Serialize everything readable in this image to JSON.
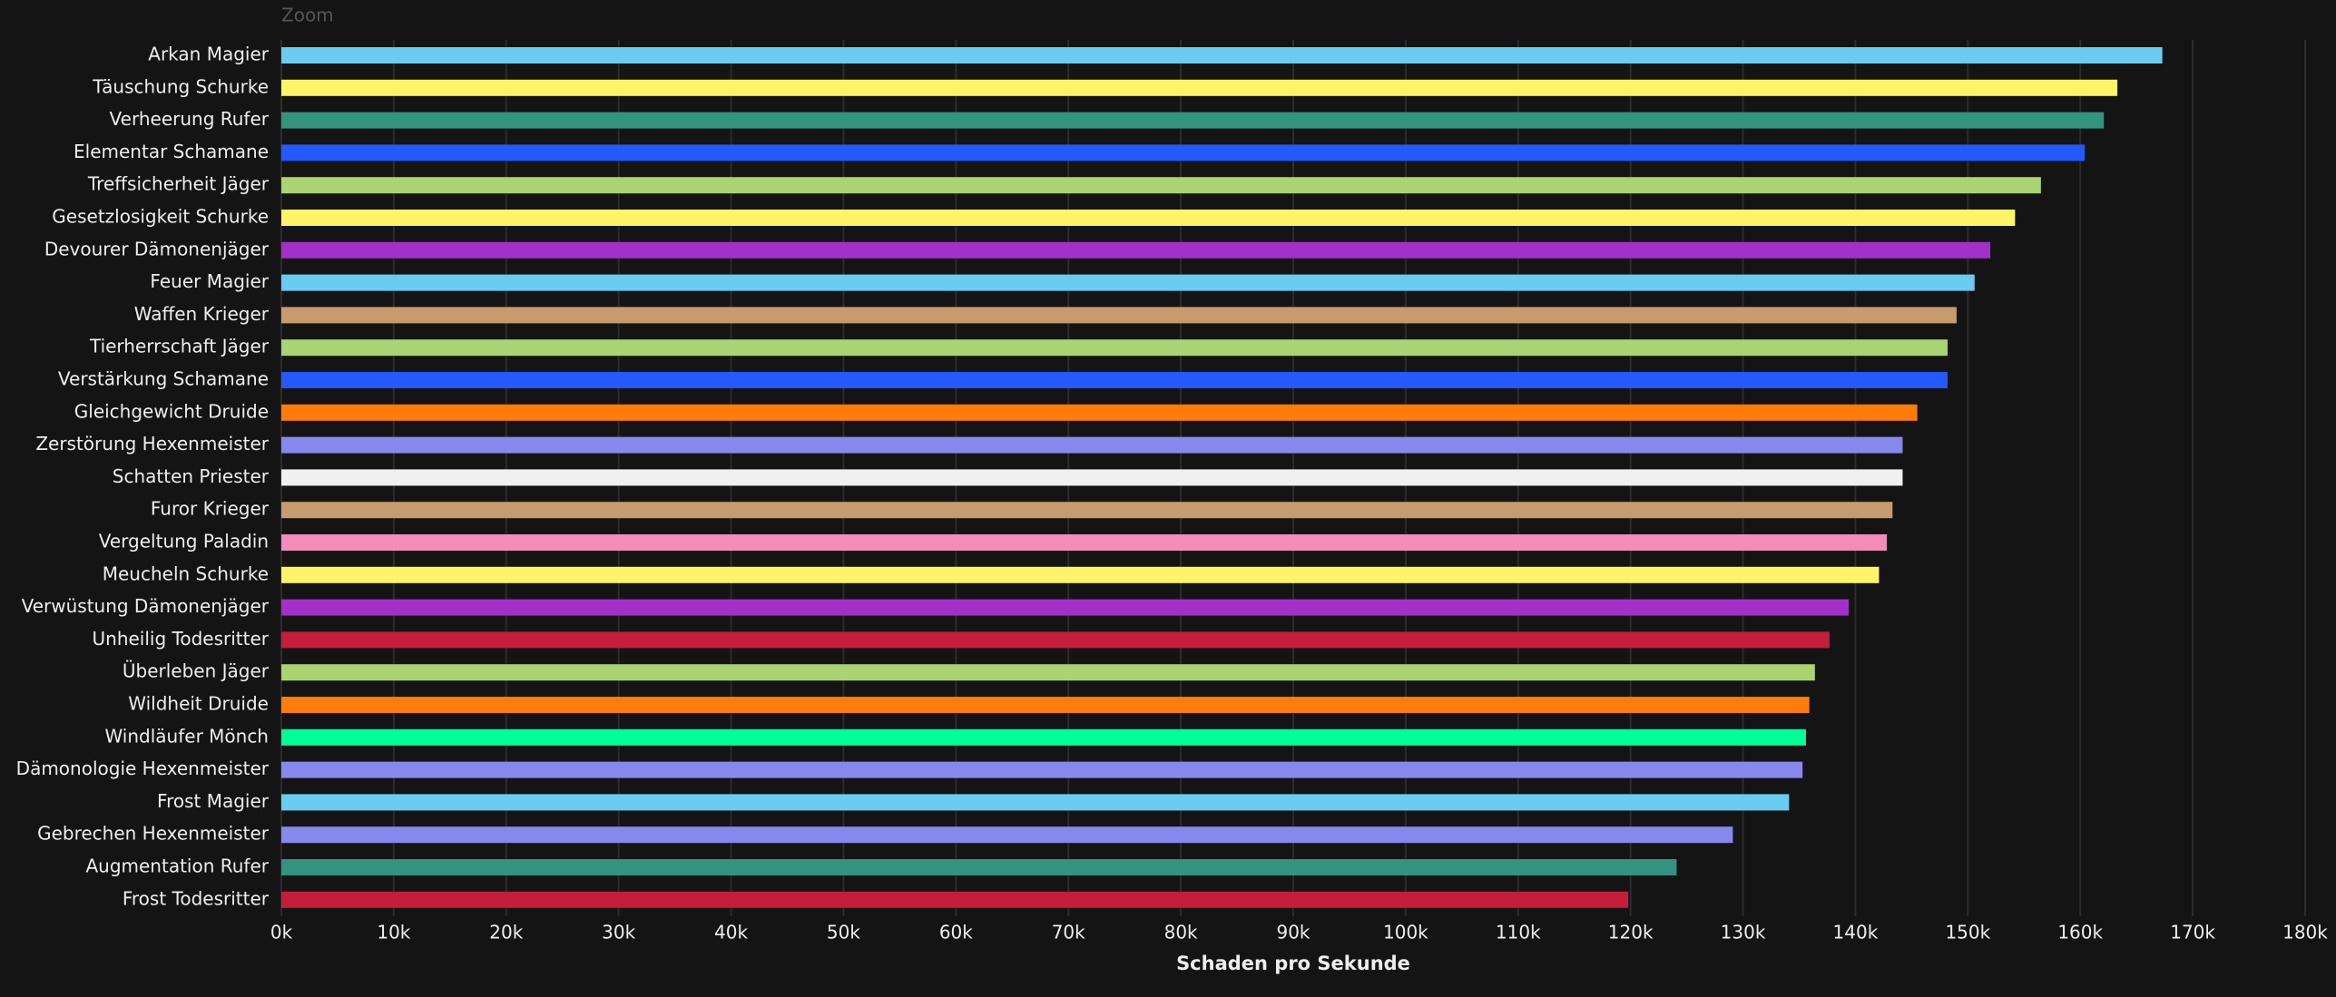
{
  "chart_data": {
    "type": "bar",
    "orientation": "horizontal",
    "zoom_label": "Zoom",
    "x_label": "Schaden pro Sekunde",
    "categories": [
      "Arkan Magier",
      "Täuschung Schurke",
      "Verheerung Rufer",
      "Elementar Schamane",
      "Treffsicherheit Jäger",
      "Gesetzlosigkeit Schurke",
      "Devourer Dämonenjäger",
      "Feuer Magier",
      "Waffen Krieger",
      "Tierherrschaft Jäger",
      "Verstärkung Schamane",
      "Gleichgewicht Druide",
      "Zerstörung Hexenmeister",
      "Schatten Priester",
      "Furor Krieger",
      "Vergeltung Paladin",
      "Meucheln Schurke",
      "Verwüstung Dämonenjäger",
      "Unheilig Todesritter",
      "Überleben Jäger",
      "Wildheit Druide",
      "Windläufer Mönch",
      "Dämonologie Hexenmeister",
      "Frost Magier",
      "Gebrechen Hexenmeister",
      "Augmentation Rufer",
      "Frost Todesritter"
    ],
    "values": [
      167300,
      163300,
      162100,
      160400,
      156500,
      154200,
      152000,
      150600,
      149000,
      148200,
      148200,
      145500,
      144200,
      144200,
      143300,
      142800,
      142100,
      139400,
      137700,
      136400,
      135900,
      135600,
      135300,
      134100,
      129100,
      124100,
      119800
    ],
    "colors": [
      "#69ccf0",
      "#fff468",
      "#33937f",
      "#2459ff",
      "#aad372",
      "#fff468",
      "#a330c9",
      "#69ccf0",
      "#c69b6d",
      "#aad372",
      "#2459ff",
      "#ff7c0a",
      "#8788ee",
      "#f0f0f0",
      "#c69b6d",
      "#f48cba",
      "#fff468",
      "#a330c9",
      "#c41e3a",
      "#aad372",
      "#ff7c0a",
      "#00ff98",
      "#8788ee",
      "#69ccf0",
      "#8788ee",
      "#33937f",
      "#c41e3a"
    ],
    "xlim": [
      0,
      180000
    ],
    "xticks": [
      {
        "value": 0,
        "label": "0k"
      },
      {
        "value": 10000,
        "label": "10k"
      },
      {
        "value": 20000,
        "label": "20k"
      },
      {
        "value": 30000,
        "label": "30k"
      },
      {
        "value": 40000,
        "label": "40k"
      },
      {
        "value": 50000,
        "label": "50k"
      },
      {
        "value": 60000,
        "label": "60k"
      },
      {
        "value": 70000,
        "label": "70k"
      },
      {
        "value": 80000,
        "label": "80k"
      },
      {
        "value": 90000,
        "label": "90k"
      },
      {
        "value": 100000,
        "label": "100k"
      },
      {
        "value": 110000,
        "label": "110k"
      },
      {
        "value": 120000,
        "label": "120k"
      },
      {
        "value": 130000,
        "label": "130k"
      },
      {
        "value": 140000,
        "label": "140k"
      },
      {
        "value": 150000,
        "label": "150k"
      },
      {
        "value": 160000,
        "label": "160k"
      },
      {
        "value": 170000,
        "label": "170k"
      },
      {
        "value": 180000,
        "label": "180k"
      }
    ],
    "grid": true
  }
}
